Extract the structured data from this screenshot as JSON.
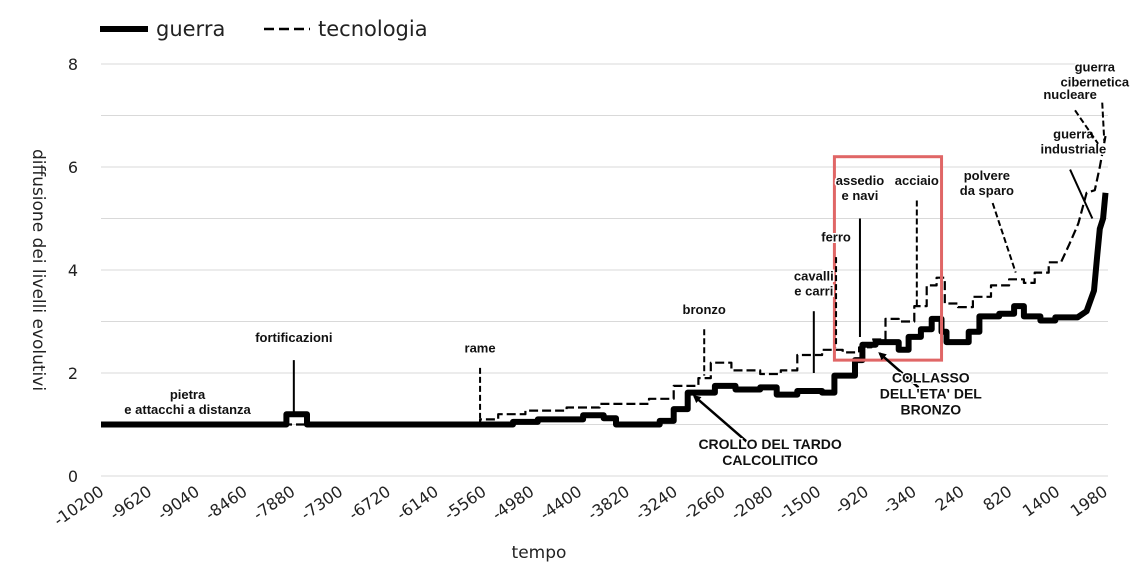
{
  "chart_data": {
    "type": "line",
    "xlabel": "tempo",
    "ylabel": "diffusione dei livelli evolutivi",
    "ylim": [
      0,
      8
    ],
    "xlim": [
      -10200,
      2020
    ],
    "y_ticks": [
      "0",
      "2",
      "4",
      "6",
      "8"
    ],
    "x_ticks": [
      {
        "value": -10200,
        "label": "-10200"
      },
      {
        "value": -9620,
        "label": "-9620"
      },
      {
        "value": -9040,
        "label": "-9040"
      },
      {
        "value": -8460,
        "label": "-8460"
      },
      {
        "value": -7880,
        "label": "-7880"
      },
      {
        "value": -7300,
        "label": "-7300"
      },
      {
        "value": -6720,
        "label": "-6720"
      },
      {
        "value": -6140,
        "label": "-6140"
      },
      {
        "value": -5560,
        "label": "-5560"
      },
      {
        "value": -4980,
        "label": "-4980"
      },
      {
        "value": -4400,
        "label": "-4400"
      },
      {
        "value": -3820,
        "label": "-3820"
      },
      {
        "value": -3240,
        "label": "-3240"
      },
      {
        "value": -2660,
        "label": "-2660"
      },
      {
        "value": -2080,
        "label": "-2080"
      },
      {
        "value": -1500,
        "label": "-1500"
      },
      {
        "value": -920,
        "label": "-920"
      },
      {
        "value": -340,
        "label": "-340"
      },
      {
        "value": 240,
        "label": "240"
      },
      {
        "value": 820,
        "label": "820"
      },
      {
        "value": 1400,
        "label": "1400"
      },
      {
        "value": 1980,
        "label": "1980"
      }
    ],
    "grid": true,
    "legend_position": "top-left",
    "colors": {
      "series": "#000000",
      "grid": "#d9d9d9",
      "highlight_box": "#e06666"
    },
    "series": [
      {
        "name": "guerra",
        "style": "solid-thick",
        "points": [
          [
            -10200,
            1.0
          ],
          [
            -7950,
            1.0
          ],
          [
            -7950,
            1.2
          ],
          [
            -7700,
            1.2
          ],
          [
            -7700,
            1.0
          ],
          [
            -5200,
            1.0
          ],
          [
            -5200,
            1.05
          ],
          [
            -4900,
            1.05
          ],
          [
            -4900,
            1.1
          ],
          [
            -4350,
            1.1
          ],
          [
            -4350,
            1.18
          ],
          [
            -4100,
            1.18
          ],
          [
            -4100,
            1.12
          ],
          [
            -3950,
            1.12
          ],
          [
            -3950,
            1.0
          ],
          [
            -3420,
            1.0
          ],
          [
            -3420,
            1.07
          ],
          [
            -3250,
            1.07
          ],
          [
            -3250,
            1.3
          ],
          [
            -3080,
            1.3
          ],
          [
            -3080,
            1.62
          ],
          [
            -2750,
            1.62
          ],
          [
            -2750,
            1.75
          ],
          [
            -2500,
            1.75
          ],
          [
            -2500,
            1.68
          ],
          [
            -2200,
            1.68
          ],
          [
            -2200,
            1.72
          ],
          [
            -2000,
            1.72
          ],
          [
            -2000,
            1.58
          ],
          [
            -1750,
            1.58
          ],
          [
            -1750,
            1.65
          ],
          [
            -1450,
            1.65
          ],
          [
            -1450,
            1.62
          ],
          [
            -1300,
            1.62
          ],
          [
            -1300,
            1.95
          ],
          [
            -1050,
            1.95
          ],
          [
            -1050,
            2.25
          ],
          [
            -960,
            2.25
          ],
          [
            -960,
            2.55
          ],
          [
            -800,
            2.55
          ],
          [
            -800,
            2.6
          ],
          [
            -520,
            2.6
          ],
          [
            -520,
            2.45
          ],
          [
            -400,
            2.45
          ],
          [
            -400,
            2.7
          ],
          [
            -250,
            2.7
          ],
          [
            -250,
            2.85
          ],
          [
            -120,
            2.85
          ],
          [
            -120,
            3.05
          ],
          [
            0,
            3.05
          ],
          [
            0,
            2.8
          ],
          [
            60,
            2.8
          ],
          [
            60,
            2.6
          ],
          [
            330,
            2.6
          ],
          [
            330,
            2.8
          ],
          [
            460,
            2.8
          ],
          [
            460,
            3.1
          ],
          [
            700,
            3.1
          ],
          [
            700,
            3.15
          ],
          [
            880,
            3.15
          ],
          [
            880,
            3.3
          ],
          [
            1000,
            3.3
          ],
          [
            1000,
            3.1
          ],
          [
            1200,
            3.1
          ],
          [
            1200,
            3.02
          ],
          [
            1380,
            3.02
          ],
          [
            1380,
            3.08
          ],
          [
            1650,
            3.08
          ],
          [
            1760,
            3.2
          ],
          [
            1850,
            3.6
          ],
          [
            1890,
            4.3
          ],
          [
            1920,
            4.8
          ],
          [
            1960,
            5.0
          ],
          [
            1990,
            5.5
          ]
        ]
      },
      {
        "name": "tecnologia",
        "style": "dashed",
        "points": [
          [
            -10200,
            1.0
          ],
          [
            -5600,
            1.0
          ],
          [
            -5600,
            1.1
          ],
          [
            -5380,
            1.1
          ],
          [
            -5380,
            1.2
          ],
          [
            -5050,
            1.2
          ],
          [
            -5050,
            1.27
          ],
          [
            -4550,
            1.27
          ],
          [
            -4550,
            1.33
          ],
          [
            -4150,
            1.33
          ],
          [
            -4150,
            1.4
          ],
          [
            -3550,
            1.4
          ],
          [
            -3550,
            1.5
          ],
          [
            -3250,
            1.5
          ],
          [
            -3250,
            1.75
          ],
          [
            -2950,
            1.75
          ],
          [
            -2950,
            1.9
          ],
          [
            -2800,
            1.9
          ],
          [
            -2800,
            2.2
          ],
          [
            -2550,
            2.2
          ],
          [
            -2550,
            2.05
          ],
          [
            -2200,
            2.05
          ],
          [
            -2200,
            1.98
          ],
          [
            -1950,
            1.98
          ],
          [
            -1950,
            2.05
          ],
          [
            -1750,
            2.05
          ],
          [
            -1750,
            2.35
          ],
          [
            -1450,
            2.35
          ],
          [
            -1450,
            2.45
          ],
          [
            -1200,
            2.45
          ],
          [
            -1200,
            2.4
          ],
          [
            -1000,
            2.4
          ],
          [
            -1000,
            2.5
          ],
          [
            -850,
            2.5
          ],
          [
            -850,
            2.65
          ],
          [
            -680,
            2.65
          ],
          [
            -680,
            3.05
          ],
          [
            -520,
            3.05
          ],
          [
            -520,
            3.0
          ],
          [
            -330,
            3.0
          ],
          [
            -330,
            3.3
          ],
          [
            -180,
            3.3
          ],
          [
            -180,
            3.7
          ],
          [
            -60,
            3.7
          ],
          [
            -60,
            3.85
          ],
          [
            40,
            3.85
          ],
          [
            40,
            3.35
          ],
          [
            200,
            3.35
          ],
          [
            200,
            3.28
          ],
          [
            380,
            3.28
          ],
          [
            380,
            3.48
          ],
          [
            600,
            3.48
          ],
          [
            600,
            3.7
          ],
          [
            820,
            3.7
          ],
          [
            820,
            3.82
          ],
          [
            1000,
            3.82
          ],
          [
            1000,
            3.75
          ],
          [
            1130,
            3.75
          ],
          [
            1130,
            3.95
          ],
          [
            1300,
            3.95
          ],
          [
            1300,
            4.15
          ],
          [
            1450,
            4.15
          ],
          [
            1550,
            4.5
          ],
          [
            1660,
            4.9
          ],
          [
            1760,
            5.5
          ],
          [
            1860,
            5.55
          ],
          [
            1920,
            6.0
          ],
          [
            1990,
            6.6
          ]
        ]
      }
    ],
    "annotations": [
      {
        "lines": [
          "pietra",
          "e attacchi a distanza"
        ],
        "x": -9150,
        "y": 1.5,
        "arrow": false
      },
      {
        "lines": [
          "fortificazioni"
        ],
        "x": -7860,
        "y": 2.6,
        "arrow_to": [
          -7860,
          1.22
        ],
        "arrow_from": [
          -7860,
          2.25
        ]
      },
      {
        "lines": [
          "rame"
        ],
        "x": -5600,
        "y": 2.4,
        "arrow_to": [
          -5600,
          1.12
        ],
        "arrow_from": [
          -5600,
          2.1
        ]
      },
      {
        "lines": [
          "bronzo"
        ],
        "x": -2880,
        "y": 3.15,
        "arrow_to": [
          -2880,
          1.95
        ],
        "arrow_from": [
          -2880,
          2.85
        ]
      },
      {
        "lines": [
          "cavalli",
          "e carri"
        ],
        "x": -1550,
        "y": 3.8,
        "arrow_to": [
          -1550,
          2.0
        ],
        "arrow_from": [
          -1550,
          3.2
        ]
      },
      {
        "lines": [
          "ferro"
        ],
        "x": -1280,
        "y": 4.55,
        "arrow_to": [
          -1280,
          2.5
        ],
        "arrow_from": [
          -1280,
          4.25
        ]
      },
      {
        "lines": [
          "assedio",
          "e navi"
        ],
        "x": -990,
        "y": 5.65,
        "arrow_to": [
          -990,
          2.7
        ],
        "arrow_from": [
          -990,
          5.0
        ]
      },
      {
        "lines": [
          "acciaio"
        ],
        "x": -300,
        "y": 5.65,
        "arrow_to": [
          -300,
          3.3
        ],
        "arrow_from": [
          -300,
          5.35
        ]
      },
      {
        "lines": [
          "polvere",
          "da sparo"
        ],
        "x": 550,
        "y": 5.75,
        "arrow_to": [
          900,
          3.95
        ],
        "arrow_from": [
          620,
          5.3
        ]
      },
      {
        "lines": [
          "guerra",
          "industriale"
        ],
        "x": 1600,
        "y": 6.55,
        "arrow_to": [
          1830,
          5.0
        ],
        "arrow_from": [
          1560,
          5.95
        ]
      },
      {
        "lines": [
          "nucleare"
        ],
        "x": 1560,
        "y": 7.32,
        "arrow_to": [
          1900,
          6.45
        ],
        "arrow_from": [
          1620,
          7.1
        ]
      },
      {
        "lines": [
          "guerra",
          "cibernetica"
        ],
        "x": 1860,
        "y": 7.85,
        "arrow_to": [
          1975,
          6.5
        ],
        "arrow_from": [
          1950,
          7.25
        ]
      },
      {
        "lines": [
          "CROLLO DEL TARDO",
          "CALCOLITICO"
        ],
        "x": -2080,
        "y": 0.52,
        "arrow_to": [
          -3000,
          1.55
        ],
        "arrow_from": [
          -2330,
          0.62
        ],
        "big": true
      },
      {
        "lines": [
          "COLLASSO",
          "DELL'ETA' DEL",
          "BRONZO"
        ],
        "x": -130,
        "y": 1.82,
        "arrow_to": [
          -750,
          2.38
        ],
        "arrow_from": [
          -280,
          1.72
        ],
        "big": true
      }
    ],
    "highlight_box": {
      "x0": -1300,
      "x1": 0,
      "y0": 2.25,
      "y1": 6.2
    }
  },
  "legend": [
    {
      "label": "guerra",
      "style": "solid-thick"
    },
    {
      "label": "tecnologia",
      "style": "dashed"
    }
  ]
}
